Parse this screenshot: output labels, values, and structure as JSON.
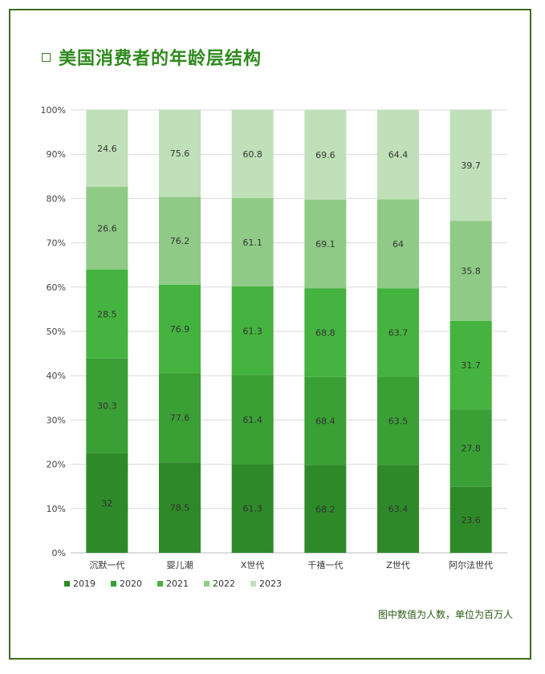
{
  "title": "美国消费者的年龄层结构",
  "note": "图中数值为人数，单位为百万人",
  "chart_data": {
    "type": "bar",
    "stacked": true,
    "normalized": true,
    "categories": [
      "沉默一代",
      "婴儿潮",
      "X世代",
      "千禧一代",
      "Z世代",
      "阿尔法世代"
    ],
    "yticks": [
      "0%",
      "10%",
      "20%",
      "30%",
      "40%",
      "50%",
      "60%",
      "70%",
      "80%",
      "90%",
      "100%"
    ],
    "ylim": [
      0,
      100
    ],
    "legend_position": "bottom-left",
    "grid": true,
    "series": [
      {
        "name": "2019",
        "color": "#2e8a29",
        "values": [
          32,
          78.5,
          61.3,
          68.2,
          63.4,
          23.6
        ]
      },
      {
        "name": "2020",
        "color": "#3a9f35",
        "values": [
          30.3,
          77.6,
          61.4,
          68.4,
          63.5,
          27.8
        ]
      },
      {
        "name": "2021",
        "color": "#45b33f",
        "values": [
          28.5,
          76.9,
          61.3,
          68.8,
          63.7,
          31.7
        ]
      },
      {
        "name": "2022",
        "color": "#8fcb86",
        "values": [
          26.6,
          76.2,
          61.1,
          69.1,
          64,
          35.8
        ]
      },
      {
        "name": "2023",
        "color": "#bfe0b8",
        "values": [
          24.6,
          75.6,
          60.8,
          69.6,
          64.4,
          39.7
        ]
      }
    ]
  }
}
